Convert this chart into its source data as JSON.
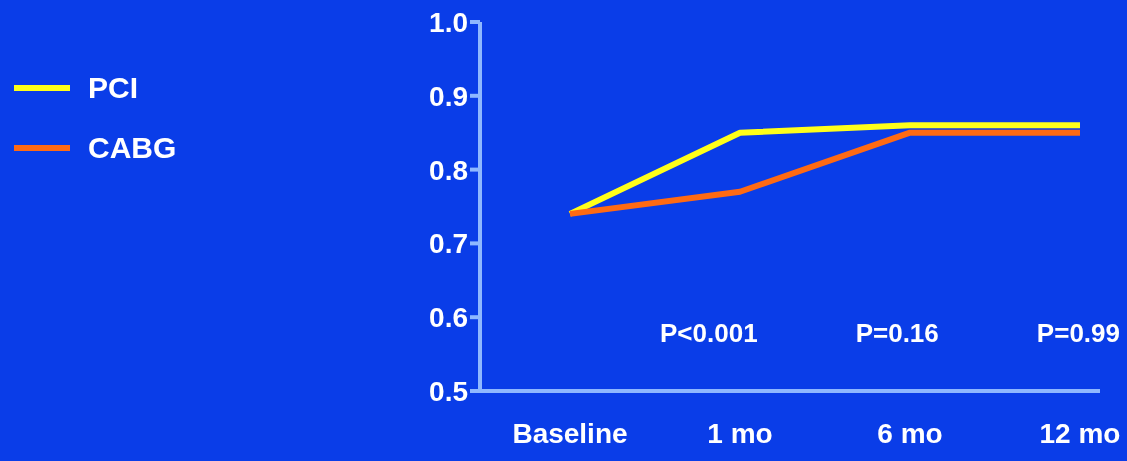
{
  "chart_data": {
    "type": "line",
    "categories": [
      "Baseline",
      "1 mo",
      "6 mo",
      "12 mo"
    ],
    "series": [
      {
        "name": "PCI",
        "color": "#ffff1a",
        "values": [
          0.74,
          0.85,
          0.86,
          0.86
        ]
      },
      {
        "name": "CABG",
        "color": "#ff6a13",
        "values": [
          0.74,
          0.77,
          0.85,
          0.85
        ]
      }
    ],
    "ylim": [
      0.5,
      1.0
    ],
    "yticks": [
      0.5,
      0.6,
      0.7,
      0.8,
      0.9,
      {
        "value": 1,
        "label": "1.0"
      }
    ],
    "annotations": [
      "P<0.001",
      "P=0.16",
      "P=0.99"
    ],
    "legend": "top left",
    "grid": false,
    "marker": "none",
    "line_style": "solid"
  }
}
